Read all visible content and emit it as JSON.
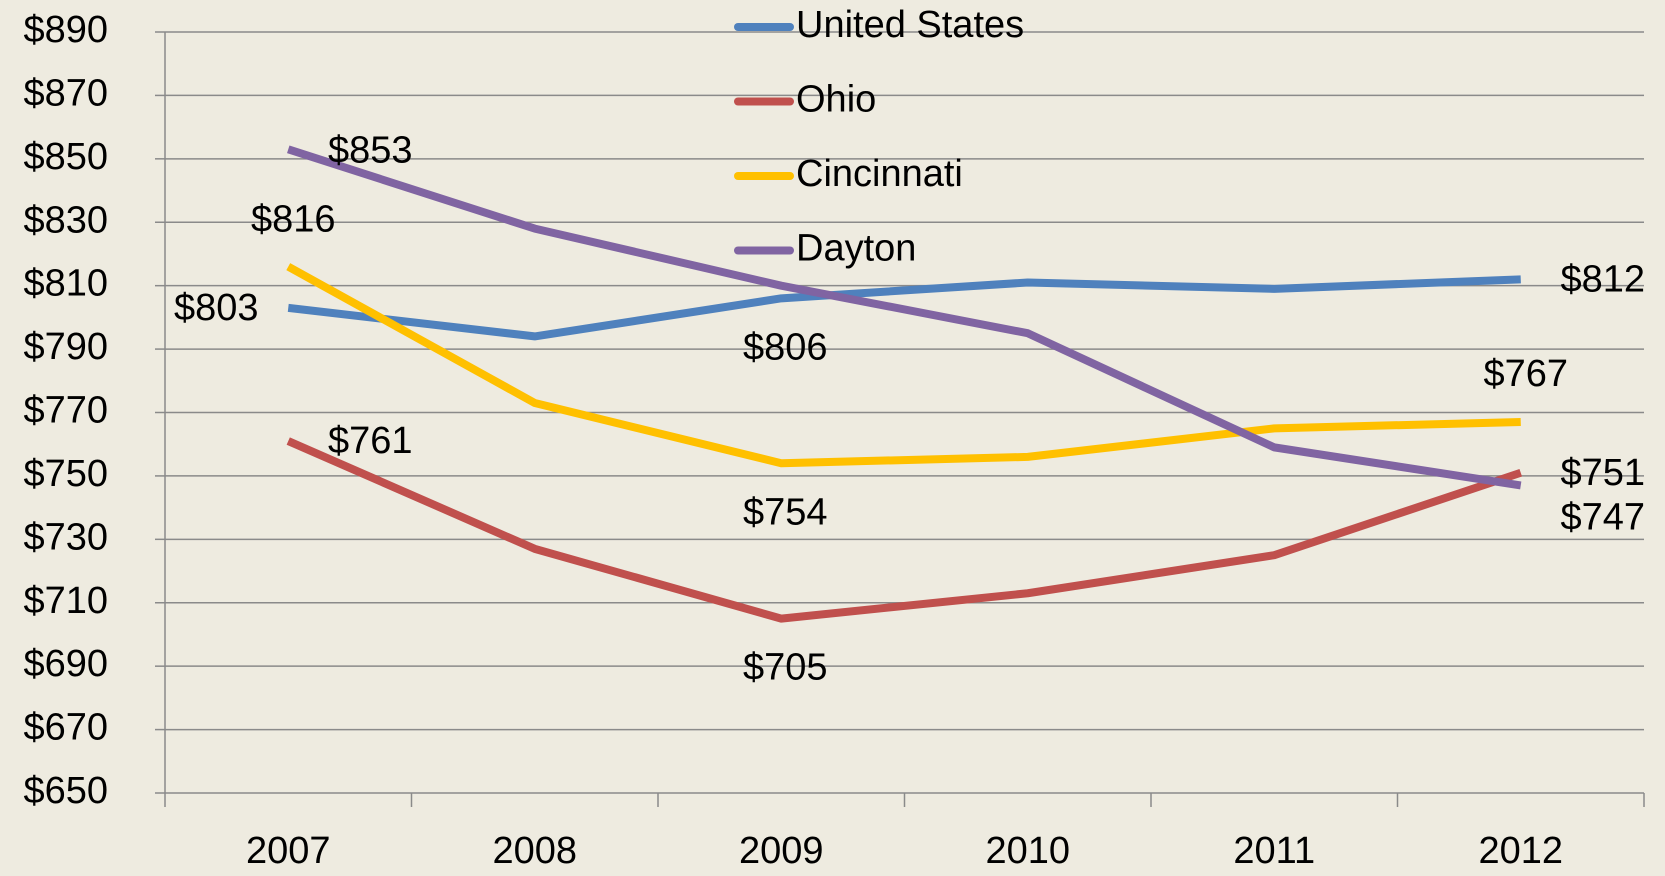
{
  "chart_data": {
    "type": "line",
    "categories": [
      "2007",
      "2008",
      "2009",
      "2010",
      "2011",
      "2012"
    ],
    "series": [
      {
        "name": "United States",
        "color": "#4f81bd",
        "values": [
          803,
          794,
          806,
          811,
          809,
          812
        ],
        "value_labels": [
          "$803",
          null,
          "$806",
          null,
          null,
          "$812"
        ]
      },
      {
        "name": "Ohio",
        "color": "#c0504d",
        "values": [
          761,
          727,
          705,
          713,
          725,
          751
        ],
        "value_labels": [
          "$761",
          null,
          "$705",
          null,
          null,
          "$751"
        ]
      },
      {
        "name": "Cincinnati",
        "color": "#ffc000",
        "values": [
          816,
          773,
          754,
          756,
          765,
          767
        ],
        "value_labels": [
          "$816",
          null,
          "$754",
          null,
          null,
          "$767"
        ]
      },
      {
        "name": "Dayton",
        "color": "#8064a2",
        "values": [
          853,
          828,
          810,
          795,
          759,
          747
        ],
        "value_labels": [
          "$853",
          null,
          null,
          null,
          null,
          "$747"
        ]
      }
    ],
    "ylim": [
      650,
      890
    ],
    "yticks": [
      {
        "value": 650,
        "label": "$650"
      },
      {
        "value": 670,
        "label": "$670"
      },
      {
        "value": 690,
        "label": "$690"
      },
      {
        "value": 710,
        "label": "$710"
      },
      {
        "value": 730,
        "label": "$730"
      },
      {
        "value": 750,
        "label": "$750"
      },
      {
        "value": 770,
        "label": "$770"
      },
      {
        "value": 790,
        "label": "$790"
      },
      {
        "value": 810,
        "label": "$810"
      },
      {
        "value": 830,
        "label": "$830"
      },
      {
        "value": 850,
        "label": "$850"
      },
      {
        "value": 870,
        "label": "$870"
      },
      {
        "value": 890,
        "label": "$890"
      }
    ],
    "grid": true,
    "legend": "top"
  }
}
